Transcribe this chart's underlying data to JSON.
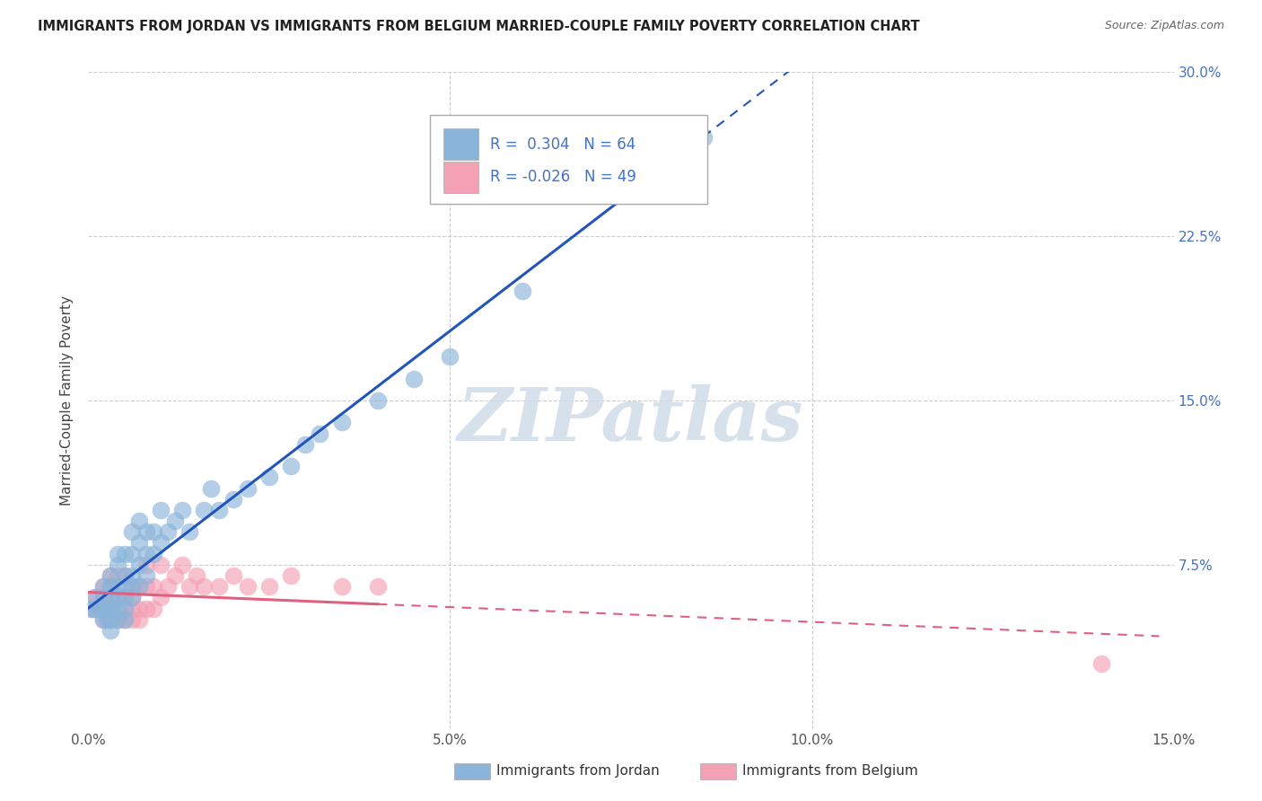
{
  "title": "IMMIGRANTS FROM JORDAN VS IMMIGRANTS FROM BELGIUM MARRIED-COUPLE FAMILY POVERTY CORRELATION CHART",
  "source": "Source: ZipAtlas.com",
  "ylabel": "Married-Couple Family Poverty",
  "watermark": "ZIPatlas",
  "legend_jordan": "Immigrants from Jordan",
  "legend_belgium": "Immigrants from Belgium",
  "r_jordan": 0.304,
  "n_jordan": 64,
  "r_belgium": -0.026,
  "n_belgium": 49,
  "xlim": [
    0.0,
    0.15
  ],
  "ylim": [
    0.0,
    0.3
  ],
  "xticks": [
    0.0,
    0.05,
    0.1,
    0.15
  ],
  "yticks": [
    0.0,
    0.075,
    0.15,
    0.225,
    0.3
  ],
  "xtick_labels": [
    "0.0%",
    "5.0%",
    "10.0%",
    "15.0%"
  ],
  "ytick_labels": [
    "",
    "7.5%",
    "15.0%",
    "22.5%",
    "30.0%"
  ],
  "color_jordan": "#8ab4d9",
  "color_belgium": "#f4a0b5",
  "trendline_jordan": "#2255bb",
  "trendline_belgium": "#e06080",
  "jordan_x": [
    0.0005,
    0.001,
    0.001,
    0.0015,
    0.002,
    0.002,
    0.002,
    0.002,
    0.0025,
    0.003,
    0.003,
    0.003,
    0.003,
    0.003,
    0.003,
    0.003,
    0.004,
    0.004,
    0.004,
    0.004,
    0.004,
    0.004,
    0.005,
    0.005,
    0.005,
    0.005,
    0.005,
    0.005,
    0.006,
    0.006,
    0.006,
    0.006,
    0.006,
    0.007,
    0.007,
    0.007,
    0.007,
    0.008,
    0.008,
    0.008,
    0.009,
    0.009,
    0.01,
    0.01,
    0.011,
    0.012,
    0.013,
    0.014,
    0.016,
    0.017,
    0.018,
    0.02,
    0.022,
    0.025,
    0.028,
    0.03,
    0.032,
    0.035,
    0.04,
    0.045,
    0.05,
    0.06,
    0.07,
    0.085
  ],
  "jordan_y": [
    0.055,
    0.06,
    0.055,
    0.055,
    0.05,
    0.055,
    0.06,
    0.065,
    0.05,
    0.045,
    0.05,
    0.055,
    0.055,
    0.06,
    0.065,
    0.07,
    0.05,
    0.055,
    0.06,
    0.065,
    0.075,
    0.08,
    0.05,
    0.055,
    0.06,
    0.065,
    0.07,
    0.08,
    0.06,
    0.065,
    0.07,
    0.08,
    0.09,
    0.065,
    0.075,
    0.085,
    0.095,
    0.07,
    0.08,
    0.09,
    0.08,
    0.09,
    0.085,
    0.1,
    0.09,
    0.095,
    0.1,
    0.09,
    0.1,
    0.11,
    0.1,
    0.105,
    0.11,
    0.115,
    0.12,
    0.13,
    0.135,
    0.14,
    0.15,
    0.16,
    0.17,
    0.2,
    0.25,
    0.27
  ],
  "belgium_x": [
    0.0005,
    0.001,
    0.001,
    0.0015,
    0.002,
    0.002,
    0.002,
    0.002,
    0.003,
    0.003,
    0.003,
    0.003,
    0.003,
    0.004,
    0.004,
    0.004,
    0.004,
    0.005,
    0.005,
    0.005,
    0.005,
    0.006,
    0.006,
    0.006,
    0.006,
    0.007,
    0.007,
    0.007,
    0.008,
    0.008,
    0.008,
    0.009,
    0.009,
    0.01,
    0.01,
    0.011,
    0.012,
    0.013,
    0.014,
    0.015,
    0.016,
    0.018,
    0.02,
    0.022,
    0.025,
    0.028,
    0.035,
    0.04,
    0.14
  ],
  "belgium_y": [
    0.055,
    0.06,
    0.055,
    0.055,
    0.05,
    0.055,
    0.06,
    0.065,
    0.05,
    0.055,
    0.06,
    0.065,
    0.07,
    0.05,
    0.055,
    0.06,
    0.07,
    0.05,
    0.055,
    0.06,
    0.07,
    0.05,
    0.055,
    0.06,
    0.065,
    0.05,
    0.055,
    0.065,
    0.055,
    0.065,
    0.075,
    0.055,
    0.065,
    0.06,
    0.075,
    0.065,
    0.07,
    0.075,
    0.065,
    0.07,
    0.065,
    0.065,
    0.07,
    0.065,
    0.065,
    0.07,
    0.065,
    0.065,
    0.03
  ]
}
